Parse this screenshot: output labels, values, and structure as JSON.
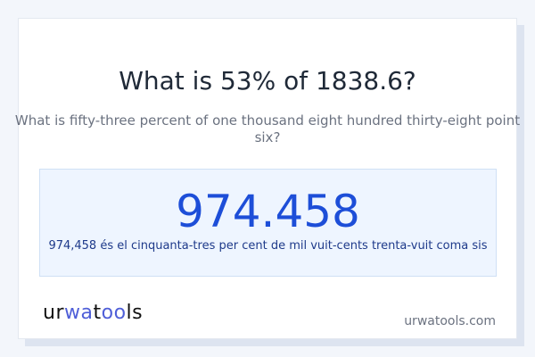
{
  "title": "What is 53% of 1838.6?",
  "subtitle": "What is fifty-three percent of one thousand eight hundred thirty-eight point six?",
  "result": {
    "value": "974.458",
    "words": "974,458 és el cinquanta-tres per cent de mil vuit-cents trenta-vuit coma sis"
  },
  "logo": {
    "text": "urwatools",
    "accent_color": "#4f5fd8"
  },
  "site": "urwatools.com",
  "colors": {
    "result_value": "#1d4ed8",
    "result_bg": "#eef5ff"
  }
}
